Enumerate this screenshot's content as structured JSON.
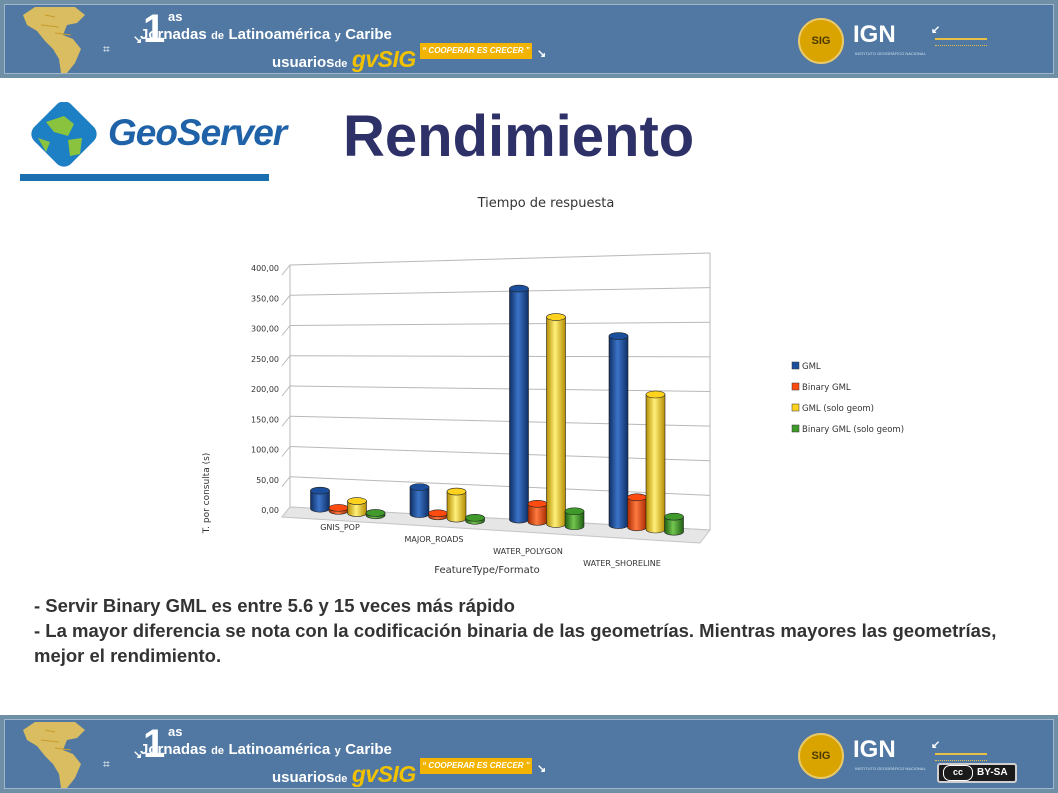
{
  "banner": {
    "number": "1",
    "superscript": "as",
    "line1_prefix": "Jornadas",
    "line1_de": "de",
    "line1_region": "Latinoamérica",
    "line1_y": "y",
    "line1_caribe": "Caribe",
    "line2_prefix": "usuarios",
    "line2_de": "de",
    "gvsig": "gvSIG",
    "slogan": "“ COOPERAR ES CRECER ”",
    "sig_logo": "SIG",
    "ign_logo": "IGN",
    "ign_subtitle": "INSTITUTO GEOGRÁFICO NACIONAL"
  },
  "logo": {
    "text": "GeoServer"
  },
  "title": "Rendimiento",
  "license": {
    "cc": "cc",
    "text": "BY-SA"
  },
  "bullets": [
    "- Servir Binary GML es entre 5.6 y 15 veces más rápido",
    "- La mayor diferencia se nota con la codificación binaria de las geometrías. Mientras mayores las geometrías, mejor el rendimiento."
  ],
  "colors": {
    "title": "#2e3168",
    "banner": "#5078a3",
    "gml": "#1b4f9c",
    "binary_gml": "#ff4a10",
    "gml_geom": "#ffd21e",
    "binary_gml_geom": "#3f9a2b"
  },
  "chart_data": {
    "type": "bar",
    "style": "3d-cylinder",
    "title": "Tiempo de respuesta",
    "xlabel": "FeatureType/Formato",
    "ylabel": "T. por consulta (s)",
    "ylim": [
      0,
      400
    ],
    "yticks": [
      "0,00",
      "50,00",
      "100,00",
      "150,00",
      "200,00",
      "250,00",
      "300,00",
      "350,00",
      "400,00"
    ],
    "categories": [
      "GNIS_POP",
      "MAJOR_ROADS",
      "WATER_POLYGON",
      "WATER_SHORELINE"
    ],
    "legend_position": "right",
    "grid": true,
    "series": [
      {
        "name": "GML",
        "color": "#1b4f9c",
        "values": [
          30,
          45,
          385,
          315
        ]
      },
      {
        "name": "Binary GML",
        "color": "#ff4a10",
        "values": [
          5,
          5,
          30,
          50
        ]
      },
      {
        "name": "GML (solo geom)",
        "color": "#ffd21e",
        "values": [
          20,
          45,
          345,
          225
        ]
      },
      {
        "name": "Binary GML (solo geom)",
        "color": "#3f9a2b",
        "values": [
          4,
          5,
          25,
          25
        ]
      }
    ]
  }
}
